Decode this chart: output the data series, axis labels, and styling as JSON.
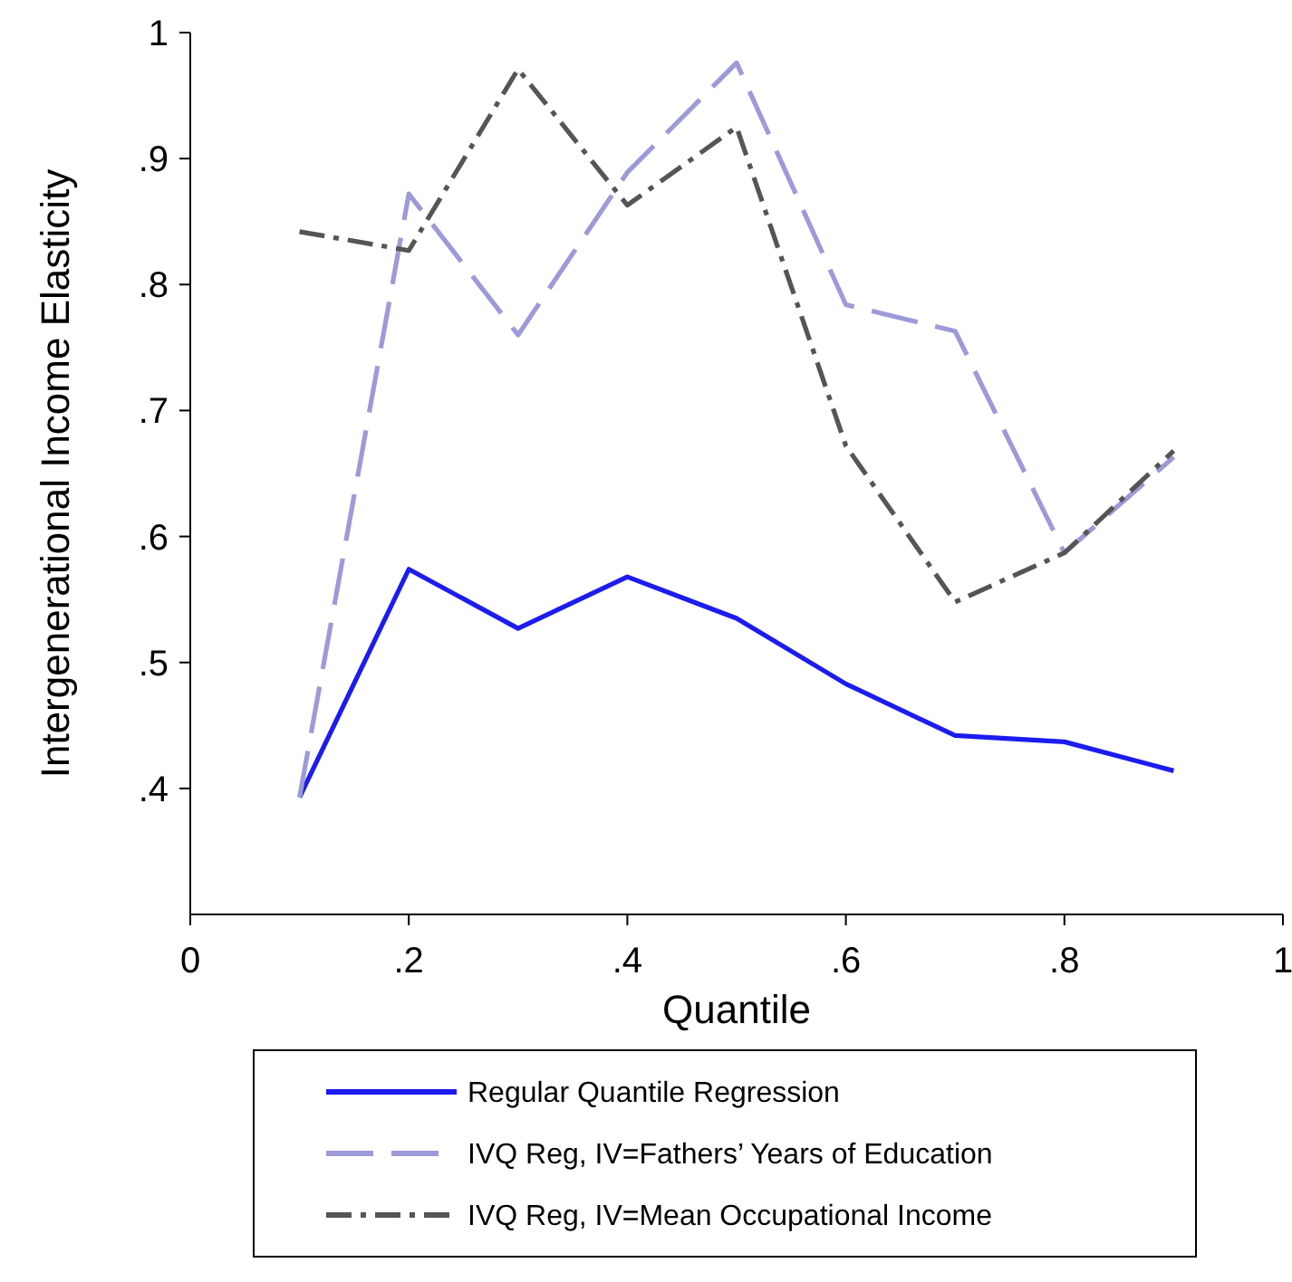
{
  "chart_data": {
    "type": "line",
    "xlabel": "Quantile",
    "ylabel": "Intergenerational Income Elasticity",
    "x": [
      0.1,
      0.2,
      0.3,
      0.4,
      0.5,
      0.6,
      0.7,
      0.8,
      0.9
    ],
    "series": [
      {
        "name": "Regular Quantile Regression",
        "color": "#1c1cf0",
        "line_style": "solid",
        "values": [
          0.393,
          0.574,
          0.527,
          0.568,
          0.535,
          0.483,
          0.442,
          0.437,
          0.414
        ]
      },
      {
        "name": "IVQ Reg, IV=Fathers’ Years of Education",
        "color": "#9c9ad8",
        "line_style": "dashed",
        "values": [
          0.393,
          0.872,
          0.76,
          0.889,
          0.976,
          0.784,
          0.763,
          0.587,
          0.663
        ]
      },
      {
        "name": "IVQ Reg, IV=Mean Occupational Income",
        "color": "#555555",
        "line_style": "dotted",
        "values": [
          0.842,
          0.827,
          0.971,
          0.863,
          0.925,
          0.672,
          0.548,
          0.587,
          0.668
        ]
      }
    ],
    "xlim": [
      0,
      1
    ],
    "xticks": [
      0,
      {
        "value": 0.2,
        "label": ".2"
      },
      {
        "value": 0.4,
        "label": ".4"
      },
      {
        "value": 0.6,
        "label": ".6"
      },
      {
        "value": 0.8,
        "label": ".8"
      },
      1
    ],
    "ylim": [
      0.3,
      1
    ],
    "yticks": [
      {
        "value": 0.4,
        "label": ".4"
      },
      {
        "value": 0.5,
        "label": ".5"
      },
      {
        "value": 0.6,
        "label": ".6"
      },
      {
        "value": 0.7,
        "label": ".7"
      },
      {
        "value": 0.8,
        "label": ".8"
      },
      {
        "value": 0.9,
        "label": ".9"
      },
      1
    ],
    "grid": false,
    "legend": "bottom",
    "marker": "none"
  }
}
